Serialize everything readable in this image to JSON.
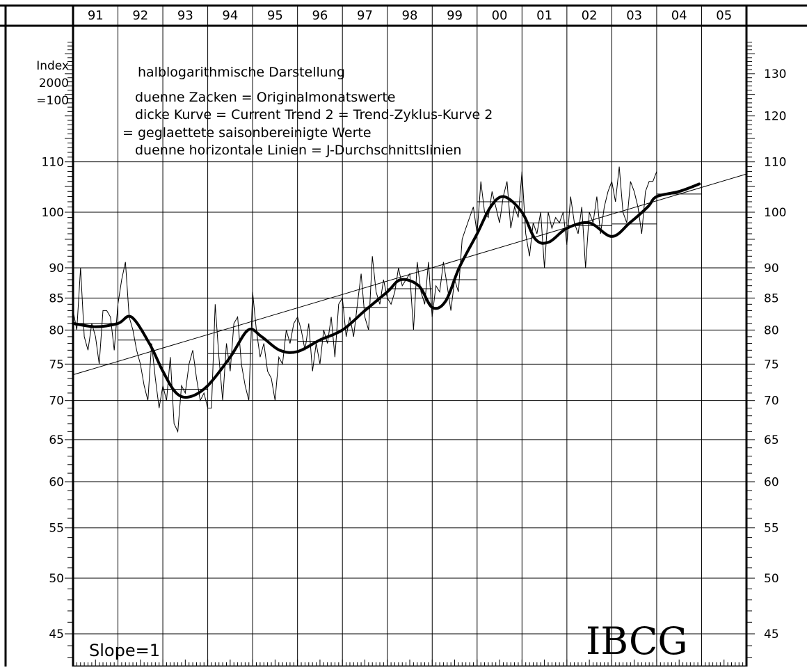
{
  "chart_data": {
    "type": "line",
    "scale": "semi-logarithmic",
    "x": {
      "labels": [
        "91",
        "92",
        "93",
        "94",
        "95",
        "96",
        "97",
        "98",
        "99",
        "00",
        "01",
        "02",
        "03",
        "04",
        "05"
      ],
      "start_year": 1991,
      "end_year": 2006
    },
    "y": {
      "range": [
        43,
        138
      ],
      "left_header": [
        "Index",
        "2000",
        "=100"
      ],
      "left_ticks": [
        110,
        100,
        90,
        85,
        80,
        75,
        70,
        65,
        60,
        55,
        50,
        45
      ],
      "right_ticks": [
        130,
        120,
        110,
        100,
        90,
        85,
        80,
        75,
        70,
        65,
        60,
        55,
        50,
        45
      ]
    },
    "notes": [
      "halblogarithmische Darstellung",
      "duenne Zacken = Originalmonatswerte",
      "dicke Kurve    = Current Trend 2 = Trend-Zyklus-Kurve 2",
      "= geglaettete saisonbereinigte Werte",
      "duenne horizontale Linien = J-Durchschnittslinien"
    ],
    "slope_label": "Slope=1",
    "watermark": "IBCG",
    "trend_curve": {
      "t": [
        1991.0,
        1991.5,
        1992.0,
        1992.3,
        1992.7,
        1993.0,
        1993.3,
        1993.6,
        1994.0,
        1994.5,
        1994.9,
        1995.2,
        1995.6,
        1996.0,
        1996.5,
        1997.0,
        1997.5,
        1998.0,
        1998.3,
        1998.7,
        1999.0,
        1999.3,
        1999.6,
        2000.0,
        2000.3,
        2000.6,
        2001.0,
        2001.3,
        2001.6,
        2002.0,
        2002.5,
        2003.0,
        2003.4,
        2003.8,
        2004.0,
        2004.5,
        2004.95
      ],
      "v": [
        81,
        80.5,
        81,
        82,
        78,
        74,
        71,
        70.5,
        72,
        76,
        80,
        79,
        77,
        76.8,
        78.5,
        80,
        83,
        86,
        88,
        87,
        83.5,
        84.5,
        90,
        96,
        101,
        103,
        100,
        95,
        94.5,
        97,
        98,
        95.5,
        98,
        101,
        103,
        104,
        105.5
      ]
    },
    "regression_line": {
      "t": [
        1991.0,
        2006.0
      ],
      "v": [
        73.5,
        107.5
      ]
    },
    "monthly_values": {
      "t0": 1991.0,
      "step": 0.08333,
      "v": [
        83,
        80,
        90,
        79,
        77,
        81,
        79,
        75,
        83,
        83,
        82,
        77,
        84,
        88,
        91,
        82,
        80,
        77,
        75,
        72,
        70,
        78,
        73,
        69,
        72,
        70,
        76,
        67,
        66,
        72,
        71,
        75,
        77,
        73,
        70,
        71,
        69,
        69,
        84,
        76,
        70,
        78,
        74,
        81,
        82,
        75,
        72,
        70,
        86,
        80,
        76,
        78,
        74,
        73,
        70,
        76,
        75,
        80,
        78,
        81,
        82,
        80,
        77,
        81,
        74,
        78,
        75,
        80,
        78,
        82,
        76,
        84,
        85,
        79,
        82,
        79,
        84,
        89,
        82,
        80,
        92,
        86,
        84,
        88,
        85,
        84,
        86,
        90,
        87,
        88,
        89,
        80,
        91,
        86,
        84,
        91,
        82,
        87,
        86,
        91,
        87,
        83,
        88,
        86,
        95,
        97,
        99,
        101,
        96,
        106,
        100,
        99,
        104,
        101,
        98,
        103,
        106,
        97,
        101,
        99,
        108,
        96,
        92,
        98,
        96,
        100,
        90,
        100,
        97,
        99,
        98,
        100,
        94,
        103,
        98,
        96,
        101,
        90,
        100,
        98,
        103,
        96,
        101,
        104,
        106,
        102,
        109,
        100,
        98,
        106,
        104,
        101,
        96,
        104,
        106,
        106,
        108
      ]
    },
    "annual_averages": [
      {
        "year": 1991,
        "v": 81
      },
      {
        "year": 1992,
        "v": 78.5
      },
      {
        "year": 1993,
        "v": 71.5
      },
      {
        "year": 1994,
        "v": 76.5
      },
      {
        "year": 1995,
        "v": 78.5
      },
      {
        "year": 1996,
        "v": 78.3
      },
      {
        "year": 1997,
        "v": 83.5
      },
      {
        "year": 1998,
        "v": 86.5
      },
      {
        "year": 1999,
        "v": 88
      },
      {
        "year": 2000,
        "v": 102
      },
      {
        "year": 2001,
        "v": 98
      },
      {
        "year": 2002,
        "v": 97.5
      },
      {
        "year": 2003,
        "v": 97.8
      },
      {
        "year": 2004,
        "v": 103.5
      }
    ],
    "colors": {
      "ink": "#000000",
      "background": "#ffffff"
    }
  }
}
